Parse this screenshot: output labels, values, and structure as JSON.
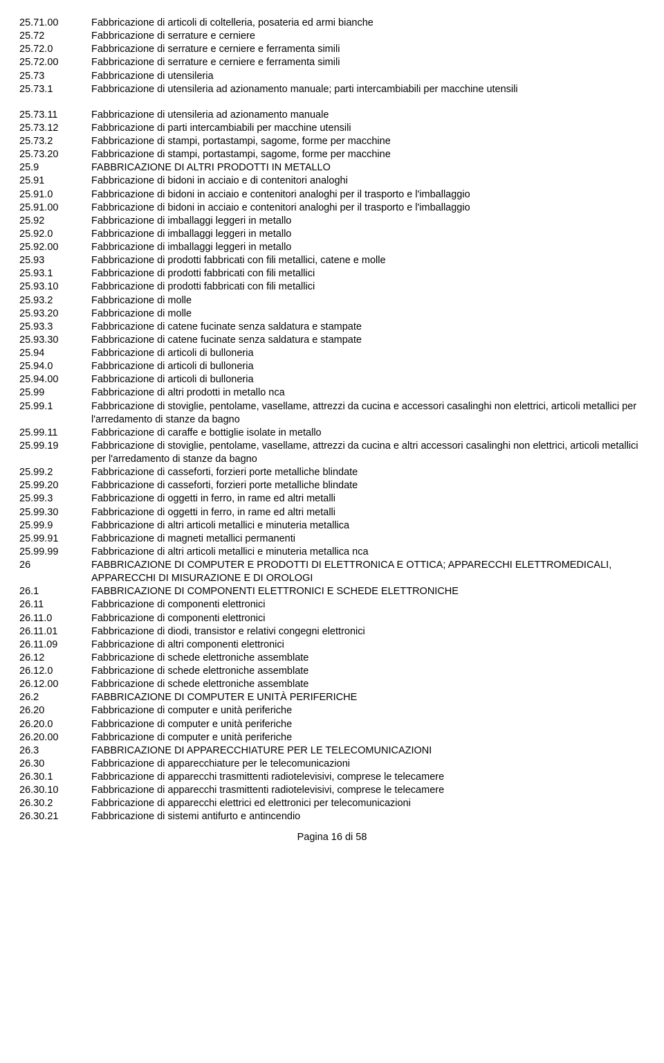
{
  "rows": [
    {
      "code": "25.71.00",
      "label": "Fabbricazione di articoli di coltelleria, posateria ed armi bianche"
    },
    {
      "code": "25.72",
      "label": "Fabbricazione di serrature e cerniere"
    },
    {
      "code": "25.72.0",
      "label": "Fabbricazione di serrature e cerniere e ferramenta simili"
    },
    {
      "code": "25.72.00",
      "label": "Fabbricazione di serrature e cerniere e ferramenta simili"
    },
    {
      "code": "25.73",
      "label": "Fabbricazione di utensileria"
    },
    {
      "code": "25.73.1",
      "label": "Fabbricazione di utensileria ad azionamento manuale; parti intercambiabili per macchine utensili"
    },
    {
      "gap": true
    },
    {
      "code": "25.73.11",
      "label": "Fabbricazione di utensileria ad azionamento manuale"
    },
    {
      "code": "25.73.12",
      "label": "Fabbricazione di parti intercambiabili per macchine utensili"
    },
    {
      "code": "25.73.2",
      "label": "Fabbricazione di stampi, portastampi, sagome, forme per macchine"
    },
    {
      "code": "25.73.20",
      "label": "Fabbricazione di stampi, portastampi, sagome, forme per macchine"
    },
    {
      "code": "25.9",
      "label": "FABBRICAZIONE DI ALTRI PRODOTTI IN METALLO"
    },
    {
      "code": "25.91",
      "label": "Fabbricazione di bidoni in acciaio e di contenitori analoghi"
    },
    {
      "code": "25.91.0",
      "label": "Fabbricazione di bidoni in acciaio e contenitori analoghi per il trasporto e l'imballaggio"
    },
    {
      "code": "25.91.00",
      "label": "Fabbricazione di bidoni in acciaio e contenitori analoghi per il trasporto e l'imballaggio"
    },
    {
      "code": "25.92",
      "label": "Fabbricazione di imballaggi leggeri in metallo"
    },
    {
      "code": "25.92.0",
      "label": "Fabbricazione di imballaggi leggeri in metallo"
    },
    {
      "code": "25.92.00",
      "label": "Fabbricazione di imballaggi leggeri in metallo"
    },
    {
      "code": "25.93",
      "label": "Fabbricazione di prodotti fabbricati con fili metallici, catene e molle"
    },
    {
      "code": "25.93.1",
      "label": "Fabbricazione di prodotti fabbricati con fili metallici"
    },
    {
      "code": "25.93.10",
      "label": "Fabbricazione di prodotti fabbricati con fili metallici"
    },
    {
      "code": "25.93.2",
      "label": "Fabbricazione di molle"
    },
    {
      "code": "25.93.20",
      "label": "Fabbricazione di molle"
    },
    {
      "code": "25.93.3",
      "label": "Fabbricazione di catene fucinate senza saldatura e stampate"
    },
    {
      "code": "25.93.30",
      "label": "Fabbricazione di catene fucinate senza saldatura e stampate"
    },
    {
      "code": "25.94",
      "label": "Fabbricazione di articoli di bulloneria"
    },
    {
      "code": "25.94.0",
      "label": "Fabbricazione di articoli di bulloneria"
    },
    {
      "code": "25.94.00",
      "label": "Fabbricazione di articoli di bulloneria"
    },
    {
      "code": "25.99",
      "label": "Fabbricazione di altri prodotti in metallo nca"
    },
    {
      "code": "25.99.1",
      "label": "Fabbricazione di stoviglie, pentolame, vasellame, attrezzi da cucina e accessori casalinghi non elettrici, articoli metallici per l'arredamento di stanze da bagno"
    },
    {
      "code": "25.99.11",
      "label": "Fabbricazione di caraffe e bottiglie isolate in metallo"
    },
    {
      "code": "25.99.19",
      "label": "Fabbricazione di stoviglie, pentolame, vasellame, attrezzi da cucina e altri accessori casalinghi non elettrici, articoli metallici per l'arredamento di stanze da bagno"
    },
    {
      "code": "25.99.2",
      "label": "Fabbricazione di casseforti, forzieri porte metalliche blindate"
    },
    {
      "code": "25.99.20",
      "label": "Fabbricazione di casseforti, forzieri porte metalliche blindate"
    },
    {
      "code": "25.99.3",
      "label": "Fabbricazione di oggetti in ferro, in rame ed altri metalli"
    },
    {
      "code": "25.99.30",
      "label": "Fabbricazione di oggetti in ferro, in rame ed altri metalli"
    },
    {
      "code": "25.99.9",
      "label": "Fabbricazione di altri articoli metallici e minuteria metallica"
    },
    {
      "code": "25.99.91",
      "label": "Fabbricazione di magneti metallici permanenti"
    },
    {
      "code": "25.99.99",
      "label": "Fabbricazione di altri articoli metallici e minuteria metallica nca"
    },
    {
      "code": "26",
      "label": "FABBRICAZIONE DI COMPUTER E PRODOTTI DI ELETTRONICA E OTTICA; APPARECCHI ELETTROMEDICALI, APPARECCHI DI MISURAZIONE E DI OROLOGI"
    },
    {
      "code": "26.1",
      "label": "FABBRICAZIONE DI COMPONENTI ELETTRONICI E SCHEDE ELETTRONICHE"
    },
    {
      "code": "26.11",
      "label": "Fabbricazione di componenti elettronici"
    },
    {
      "code": "26.11.0",
      "label": "Fabbricazione di componenti elettronici"
    },
    {
      "code": "26.11.01",
      "label": "Fabbricazione di diodi, transistor e relativi congegni elettronici"
    },
    {
      "code": "26.11.09",
      "label": "Fabbricazione di altri componenti elettronici"
    },
    {
      "code": "26.12",
      "label": "Fabbricazione di schede elettroniche assemblate"
    },
    {
      "code": "26.12.0",
      "label": "Fabbricazione di schede elettroniche assemblate"
    },
    {
      "code": "26.12.00",
      "label": "Fabbricazione di schede elettroniche assemblate"
    },
    {
      "code": "26.2",
      "label": "FABBRICAZIONE DI COMPUTER E UNITÀ PERIFERICHE"
    },
    {
      "code": "26.20",
      "label": "Fabbricazione di computer e unità periferiche"
    },
    {
      "code": "26.20.0",
      "label": "Fabbricazione di computer e unità periferiche"
    },
    {
      "code": "26.20.00",
      "label": "Fabbricazione di computer e unità periferiche"
    },
    {
      "code": "26.3",
      "label": "FABBRICAZIONE DI APPARECCHIATURE PER LE TELECOMUNICAZIONI"
    },
    {
      "code": "26.30",
      "label": "Fabbricazione di apparecchiature per le telecomunicazioni"
    },
    {
      "code": "26.30.1",
      "label": "Fabbricazione di apparecchi trasmittenti radiotelevisivi, comprese le telecamere"
    },
    {
      "code": "26.30.10",
      "label": "Fabbricazione di apparecchi trasmittenti radiotelevisivi, comprese le telecamere"
    },
    {
      "code": "26.30.2",
      "label": "Fabbricazione di apparecchi elettrici ed elettronici per telecomunicazioni"
    },
    {
      "code": "26.30.21",
      "label": "Fabbricazione di sistemi antifurto e antincendio"
    }
  ],
  "footer": "Pagina 16 di 58"
}
